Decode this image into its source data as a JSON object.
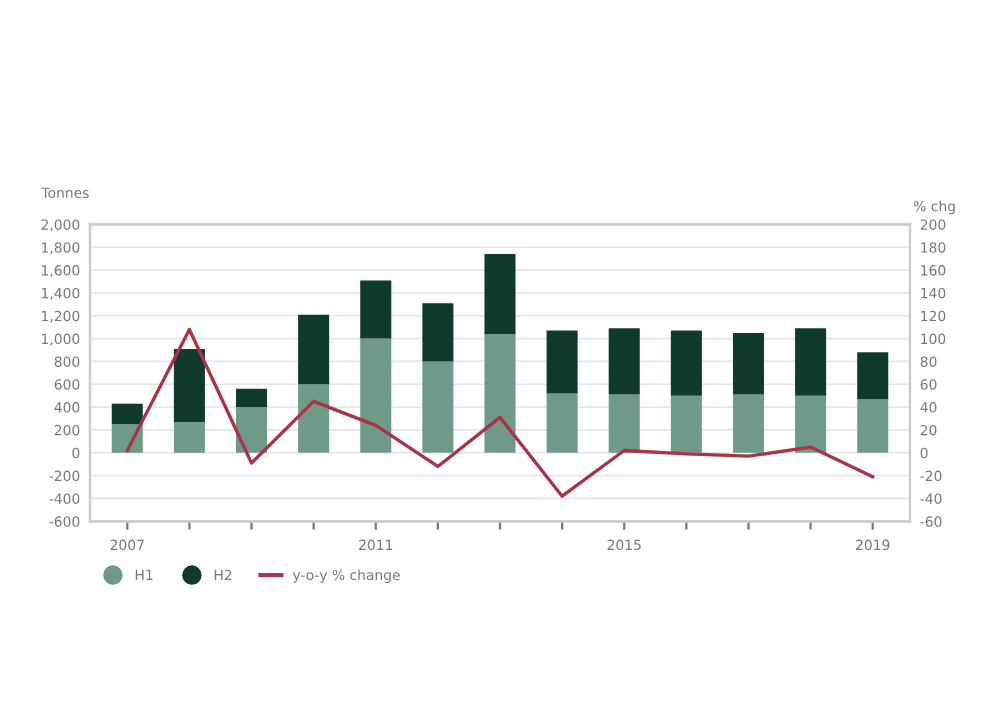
{
  "chart_data": {
    "type": "bar",
    "stacked": true,
    "ylabel": "Tonnes",
    "y2label": "% chg",
    "categories": [
      "2007",
      null,
      null,
      null,
      "2011",
      null,
      null,
      null,
      "2015",
      null,
      null,
      null,
      "2019"
    ],
    "series": [
      {
        "name": "H1",
        "color": "#6f9a88",
        "values": [
          250,
          270,
          400,
          600,
          1000,
          800,
          1040,
          520,
          510,
          500,
          510,
          500,
          470
        ]
      },
      {
        "name": "H2",
        "color": "#103a2a",
        "values": [
          180,
          640,
          160,
          610,
          510,
          510,
          700,
          550,
          580,
          570,
          540,
          590,
          410
        ]
      },
      {
        "name": "y-o-y % change",
        "type": "line",
        "axis": "y2",
        "color": "#a8344a",
        "values": [
          2,
          108,
          -9,
          45,
          24,
          -12,
          31,
          -38,
          2,
          -1,
          -3,
          5,
          -21
        ]
      }
    ],
    "ylim": [
      -600,
      2000
    ],
    "yticks": [
      {
        "value": -600,
        "label": "-600"
      },
      {
        "value": -400,
        "label": "-400"
      },
      {
        "value": -200,
        "label": "-200"
      },
      0,
      200,
      400,
      600,
      800,
      {
        "value": 1000,
        "label": "1,000"
      },
      {
        "value": 1200,
        "label": "1,200"
      },
      {
        "value": 1400,
        "label": "1,400"
      },
      {
        "value": 1600,
        "label": "1,600"
      },
      {
        "value": 1800,
        "label": "1,800"
      },
      {
        "value": 2000,
        "label": "2,000"
      }
    ],
    "y2lim": [
      -60,
      200
    ],
    "y2ticks": [
      -60,
      -40,
      -20,
      0,
      20,
      40,
      60,
      80,
      100,
      120,
      140,
      160,
      180,
      200
    ],
    "grid": "y",
    "legend": "bottom left",
    "marker": "none",
    "line_style": "solid"
  }
}
